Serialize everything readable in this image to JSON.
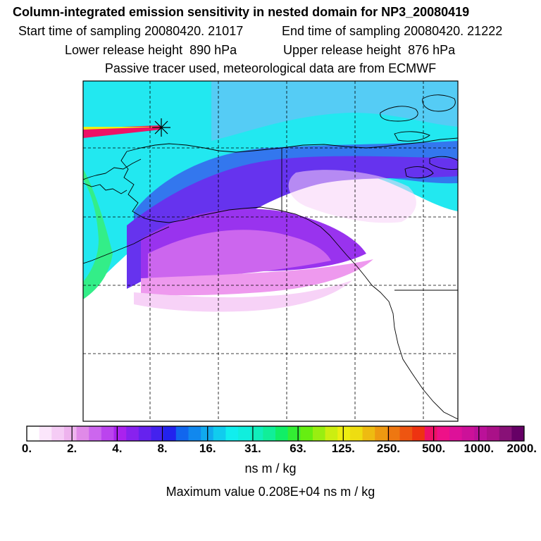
{
  "title": "Column-integrated emission sensitivity in nested domain for NP3_20080419",
  "header": {
    "start_label": "Start time of sampling 20080420. 21017",
    "end_label": "End time of sampling 20080420. 21222",
    "lower_label": "Lower release height  890 hPa",
    "upper_label": "Upper release height  876 hPa",
    "info": "Passive tracer used, meteorological data are from ECMWF"
  },
  "colorbar": {
    "ticks": [
      "0.",
      "2.",
      "4.",
      "8.",
      "16.",
      "31.",
      "63.",
      "125.",
      "250.",
      "500.",
      "1000.",
      "2000."
    ],
    "colors": [
      "#ffffff",
      "#fbe6fb",
      "#f5ccf5",
      "#eeb3ee",
      "#e08ae8",
      "#cc66ee",
      "#bb44ee",
      "#aa22ee",
      "#8822ee",
      "#6622ee",
      "#4422ee",
      "#2222ee",
      "#1166ee",
      "#1188ee",
      "#11aaee",
      "#11ccee",
      "#11eeee",
      "#11eedd",
      "#11eebb",
      "#11ee99",
      "#11ee66",
      "#33ee33",
      "#66ee11",
      "#99ee11",
      "#ccee11",
      "#eeee11",
      "#eedd11",
      "#eebb11",
      "#ee9911",
      "#ee7711",
      "#ee5511",
      "#ee3311",
      "#ee1166",
      "#ee1188",
      "#dd1199",
      "#cc1199",
      "#bb1199",
      "#aa1188",
      "#881177",
      "#660066"
    ],
    "units": "ns m / kg",
    "max_label": "Maximum value  0.208E+04 ns m / kg"
  },
  "map": {
    "release_marker": "release-point-star",
    "palette": {
      "cyan": "#22e8f0",
      "aqua": "#33ddee",
      "sky": "#55ccf5",
      "blue": "#3377ee",
      "violet": "#6633ee",
      "purple": "#9933ee",
      "magenta": "#cc66ee",
      "pink": "#ee99ee",
      "lightpink": "#f7d2f7",
      "green": "#33ee88",
      "red": "#ee1166",
      "yellow": "#eeee11"
    }
  }
}
